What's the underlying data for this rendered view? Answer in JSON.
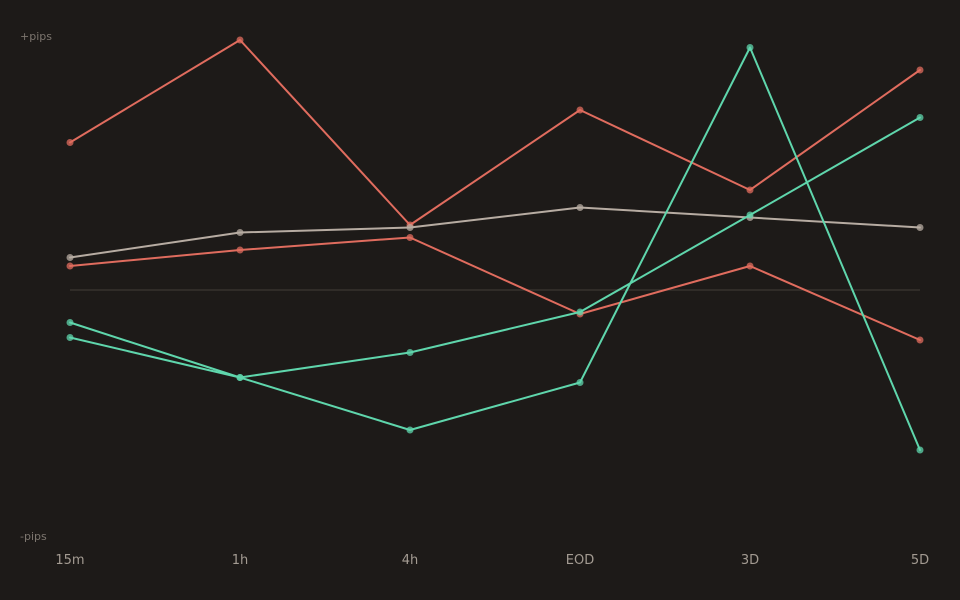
{
  "chart_data": {
    "type": "line",
    "title": "",
    "xlabel": "",
    "ylabel": "",
    "y_top_label": "+pips",
    "y_bottom_label": "-pips",
    "categories": [
      "15m",
      "1h",
      "4h",
      "EOD",
      "3D",
      "5D"
    ],
    "ylim": [
      -100,
      100
    ],
    "grid": false,
    "zero_line": true,
    "legend": "none",
    "series": [
      {
        "color": "#e06c5e",
        "values": [
          59,
          100,
          26,
          72,
          40,
          88
        ]
      },
      {
        "color": "#e06c5e",
        "values": [
          9.6,
          16,
          21,
          -9.6,
          9.6,
          -20
        ]
      },
      {
        "color": "#b7aca2",
        "values": [
          13,
          23,
          25,
          33,
          29,
          25
        ]
      },
      {
        "color": "#5fd6ac",
        "values": [
          -13,
          -35,
          -25,
          -8.8,
          30,
          69
        ]
      },
      {
        "color": "#5fd6ac",
        "values": [
          -19,
          -35,
          -56,
          -37,
          97,
          -64
        ]
      }
    ]
  }
}
